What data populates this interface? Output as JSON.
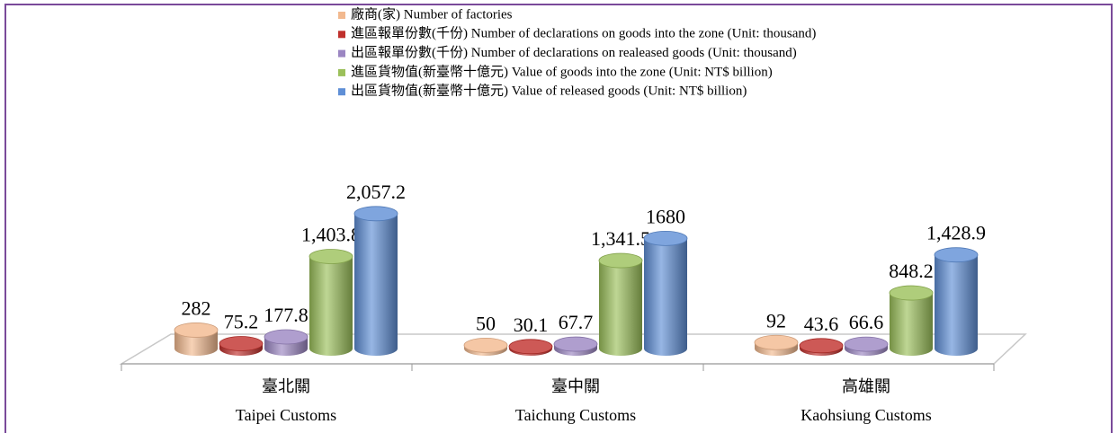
{
  "chart_data": {
    "type": "bar",
    "categories": [
      "臺北關\nTaipei Customs",
      "臺中關\nTaichung Customs",
      "高雄關\nKaohsiung Customs"
    ],
    "series": [
      {
        "name": "廠商(家)  Number of factories",
        "color": "#f2b98f",
        "values": [
          282,
          50,
          92
        ],
        "value_labels": [
          "282",
          "50",
          "92"
        ]
      },
      {
        "name": "進區報單份數(千份)  Number of declarations on goods into the zone (Unit: thousand)",
        "color": "#c0302c",
        "values": [
          75.2,
          30.1,
          43.6
        ],
        "value_labels": [
          "75.2",
          "30.1",
          "43.6"
        ]
      },
      {
        "name": "出區報單份數(千份)   Number of declarations on realeased goods (Unit: thousand)",
        "color": "#9b86c2",
        "values": [
          177.8,
          67.7,
          66.6
        ],
        "value_labels": [
          "177.8",
          "67.7",
          "66.6"
        ]
      },
      {
        "name": "進區貨物值(新臺幣十億元)  Value of  goods into the zone (Unit: NT$ billion)",
        "color": "#9bc05a",
        "values": [
          1403.8,
          1341.5,
          848.2
        ],
        "value_labels": [
          "1,403.8",
          "1,341.5",
          "848.2"
        ]
      },
      {
        "name": "出區貨物值(新臺幣十億元)  Value of  released goods  (Unit: NT$ billion)",
        "color": "#5f8fd6",
        "values": [
          2057.2,
          1680,
          1428.9
        ],
        "value_labels": [
          "2,057.2",
          "1680",
          "1,428.9"
        ]
      }
    ]
  }
}
